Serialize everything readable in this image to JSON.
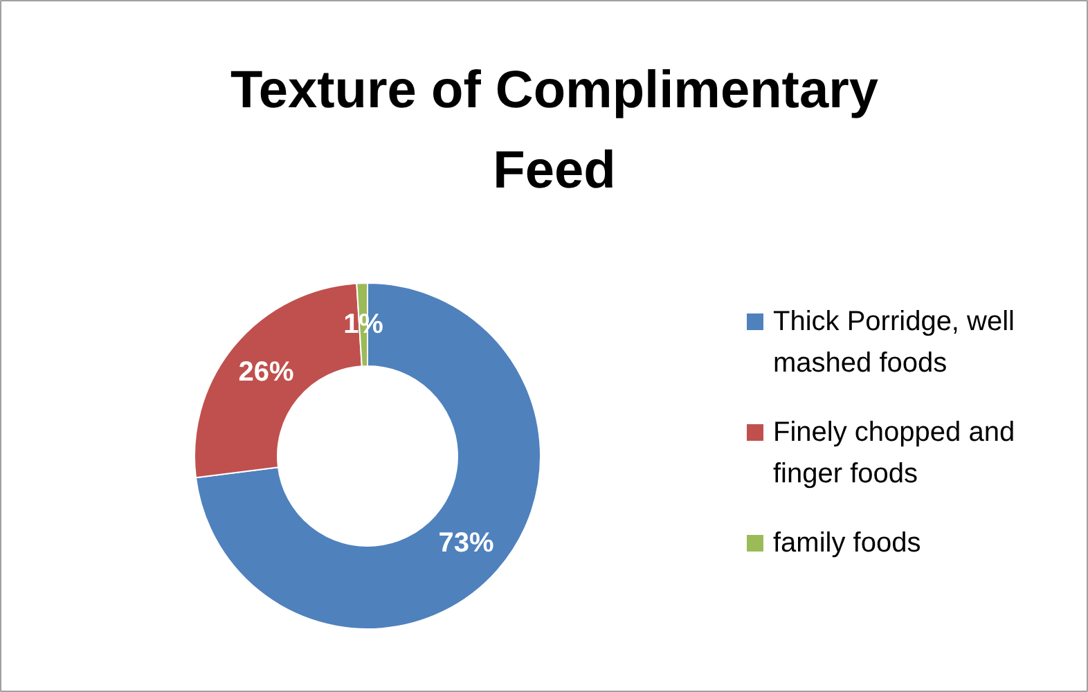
{
  "chart_data": {
    "type": "donut",
    "title": "Texture of Complimentary Feed",
    "categories": [
      "Thick Porridge, well mashed foods",
      "Finely chopped and finger foods",
      "family foods"
    ],
    "values": [
      73,
      26,
      1
    ],
    "colors": [
      "#4f81bd",
      "#c0504d",
      "#9bbb59"
    ],
    "value_labels": [
      "73%",
      "26%",
      "1%"
    ],
    "legend": "right"
  }
}
